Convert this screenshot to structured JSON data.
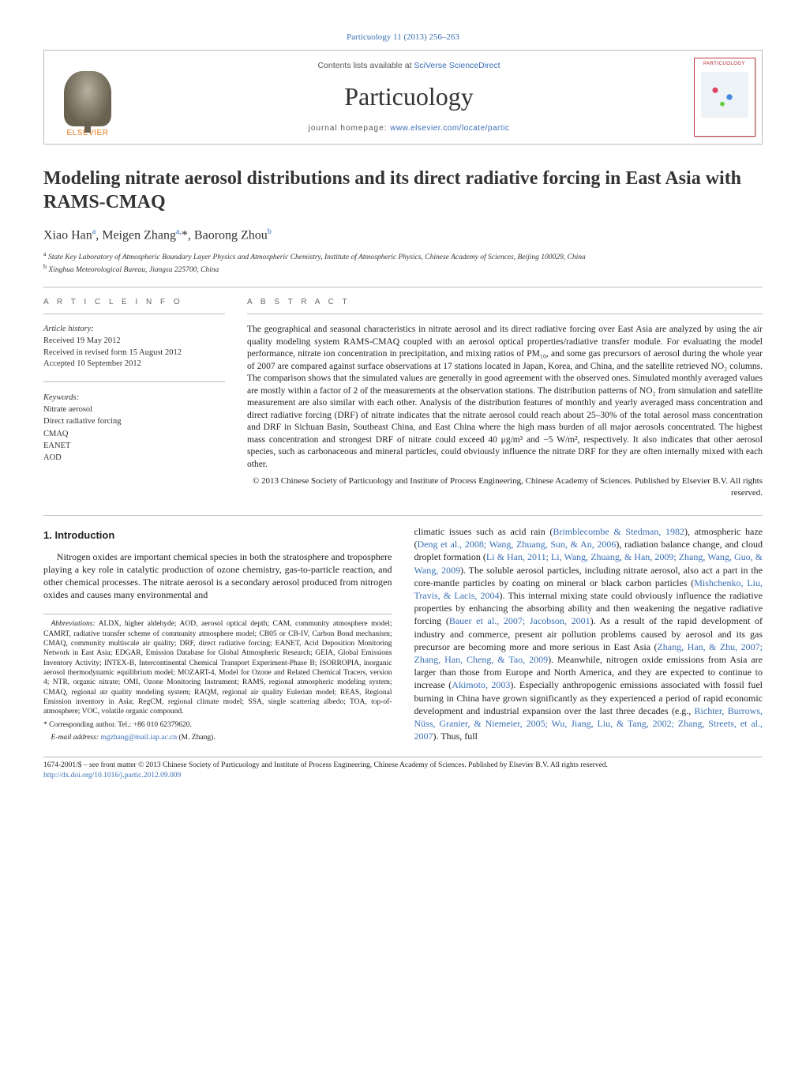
{
  "citation": {
    "journal_link": "Particuology 11 (2013) 256–263"
  },
  "masthead": {
    "publisher": "ELSEVIER",
    "contents_prefix": "Contents lists available at ",
    "contents_link": "SciVerse ScienceDirect",
    "journal": "Particuology",
    "homepage_prefix": "journal homepage: ",
    "homepage_link": "www.elsevier.com/locate/partic",
    "cover_title": "PARTICUOLOGY"
  },
  "article": {
    "title": "Modeling nitrate aerosol distributions and its direct radiative forcing in East Asia with RAMS-CMAQ",
    "authors_html": "Xiao Han<sup>a</sup>, Meigen Zhang<sup>a,</sup>*, Baorong Zhou<sup>b</sup>",
    "affiliations": [
      "a State Key Laboratory of Atmospheric Boundary Layer Physics and Atmospheric Chemistry, Institute of Atmospheric Physics, Chinese Academy of Sciences, Beijing 100029, China",
      "b Xinghua Meteorological Bureau, Jiangsu 225700, China"
    ]
  },
  "info": {
    "section_label": "a r t i c l e   i n f o",
    "history_label": "Article history:",
    "received": "Received 19 May 2012",
    "revised": "Received in revised form 15 August 2012",
    "accepted": "Accepted 10 September 2012",
    "keywords_label": "Keywords:",
    "keywords": [
      "Nitrate aerosol",
      "Direct radiative forcing",
      "CMAQ",
      "EANET",
      "AOD"
    ]
  },
  "abstract": {
    "section_label": "a b s t r a c t",
    "text": "The geographical and seasonal characteristics in nitrate aerosol and its direct radiative forcing over East Asia are analyzed by using the air quality modeling system RAMS-CMAQ coupled with an aerosol optical properties/radiative transfer module. For evaluating the model performance, nitrate ion concentration in precipitation, and mixing ratios of PM₁₀, and some gas precursors of aerosol during the whole year of 2007 are compared against surface observations at 17 stations located in Japan, Korea, and China, and the satellite retrieved NO₂ columns. The comparison shows that the simulated values are generally in good agreement with the observed ones. Simulated monthly averaged values are mostly within a factor of 2 of the measurements at the observation stations. The distribution patterns of NO₂ from simulation and satellite measurement are also similar with each other. Analysis of the distribution features of monthly and yearly averaged mass concentration and direct radiative forcing (DRF) of nitrate indicates that the nitrate aerosol could reach about 25–30% of the total aerosol mass concentration and DRF in Sichuan Basin, Southeast China, and East China where the high mass burden of all major aerosols concentrated. The highest mass concentration and strongest DRF of nitrate could exceed 40 μg/m³ and −5 W/m², respectively. It also indicates that other aerosol species, such as carbonaceous and mineral particles, could obviously influence the nitrate DRF for they are often internally mixed with each other.",
    "copyright": "© 2013 Chinese Society of Particuology and Institute of Process Engineering, Chinese Academy of Sciences. Published by Elsevier B.V. All rights reserved."
  },
  "body": {
    "intro_heading": "1. Introduction",
    "para1": "Nitrogen oxides are important chemical species in both the stratosphere and troposphere playing a key role in catalytic production of ozone chemistry, gas-to-particle reaction, and other chemical processes. The nitrate aerosol is a secondary aerosol produced from nitrogen oxides and causes many environmental and",
    "para2_pre": "climatic issues such as acid rain (",
    "cite1": "Brimblecombe & Stedman, 1982",
    "para2_a": "), atmospheric haze (",
    "cite2": "Deng et al., 2008; Wang, Zhuang, Sun, & An, 2006",
    "para2_b": "), radiation balance change, and cloud droplet formation (",
    "cite3": "Li & Han, 2011; Li, Wang, Zhuang, & Han, 2009; Zhang, Wang, Guo, & Wang, 2009",
    "para2_c": "). The soluble aerosol particles, including nitrate aerosol, also act a part in the core-mantle particles by coating on mineral or black carbon particles (",
    "cite4": "Mishchenko, Liu, Travis, & Lacis, 2004",
    "para2_d": "). This internal mixing state could obviously influence the radiative properties by enhancing the absorbing ability and then weakening the negative radiative forcing (",
    "cite5": "Bauer et al., 2007; Jacobson, 2001",
    "para2_e": "). As a result of the rapid development of industry and commerce, present air pollution problems caused by aerosol and its gas precursor are becoming more and more serious in East Asia (",
    "cite6": "Zhang, Han, & Zhu, 2007; Zhang, Han, Cheng, & Tao, 2009",
    "para2_f": "). Meanwhile, nitrogen oxide emissions from Asia are larger than those from Europe and North America, and they are expected to continue to increase (",
    "cite7": "Akimoto, 2003",
    "para2_g": "). Especially anthropogenic emissions associated with fossil fuel burning in China have grown significantly as they experienced a period of rapid economic development and industrial expansion over the last three decades (e.g., ",
    "cite8": "Richter, Burrows, Nüss, Granier, & Niemeier, 2005; Wu, Jiang, Liu, & Tang, 2002; Zhang, Streets, et al., 2007",
    "para2_h": "). Thus, full"
  },
  "footnotes": {
    "abbrev_label": "Abbreviations:",
    "abbrev_text": " ALDX, higher aldehyde; AOD, aerosol optical depth; CAM, community atmosphere model; CAMRT, radiative transfer scheme of community atmosphere model; CB05 or CB-IV, Carbon Bond mechanism; CMAQ, community multiscale air quality; DRF, direct radiative forcing; EANET, Acid Deposition Monitoring Network in East Asia; EDGAR, Emission Database for Global Atmospheric Research; GEIA, Global Emissions Inventory Activity; INTEX-B, Intercontinental Chemical Transport Experiment-Phase B; ISORROPIA, inorganic aerosol thermodynamic equilibrium model; MOZART-4, Model for Ozone and Related Chemical Tracers, version 4; NTR, organic nitrate; OMI, Ozone Monitoring Instrument; RAMS, regional atmospheric modeling system; CMAQ, regional air quality modeling system; RAQM, regional air quality Eulerian model; REAS, Regional Emission inventory in Asia; RegCM, regional climate model; SSA, single scattering albedo; TOA, top-of-atmosphere; VOC, volatile organic compound.",
    "corr_label": "* Corresponding author. Tel.: +86 010 62379620.",
    "email_label": "E-mail address: ",
    "email": "mgzhang@mail.iap.ac.cn",
    "email_suffix": " (M. Zhang)."
  },
  "footer": {
    "line1": "1674-2001/$ – see front matter © 2013 Chinese Society of Particuology and Institute of Process Engineering, Chinese Academy of Sciences. Published by Elsevier B.V. All rights reserved.",
    "doi": "http://dx.doi.org/10.1016/j.partic.2012.09.009"
  },
  "colors": {
    "link": "#3a6fb5",
    "elsevier_orange": "#e77817",
    "rule": "#bbbbbb",
    "cover_border": "#c04040"
  }
}
